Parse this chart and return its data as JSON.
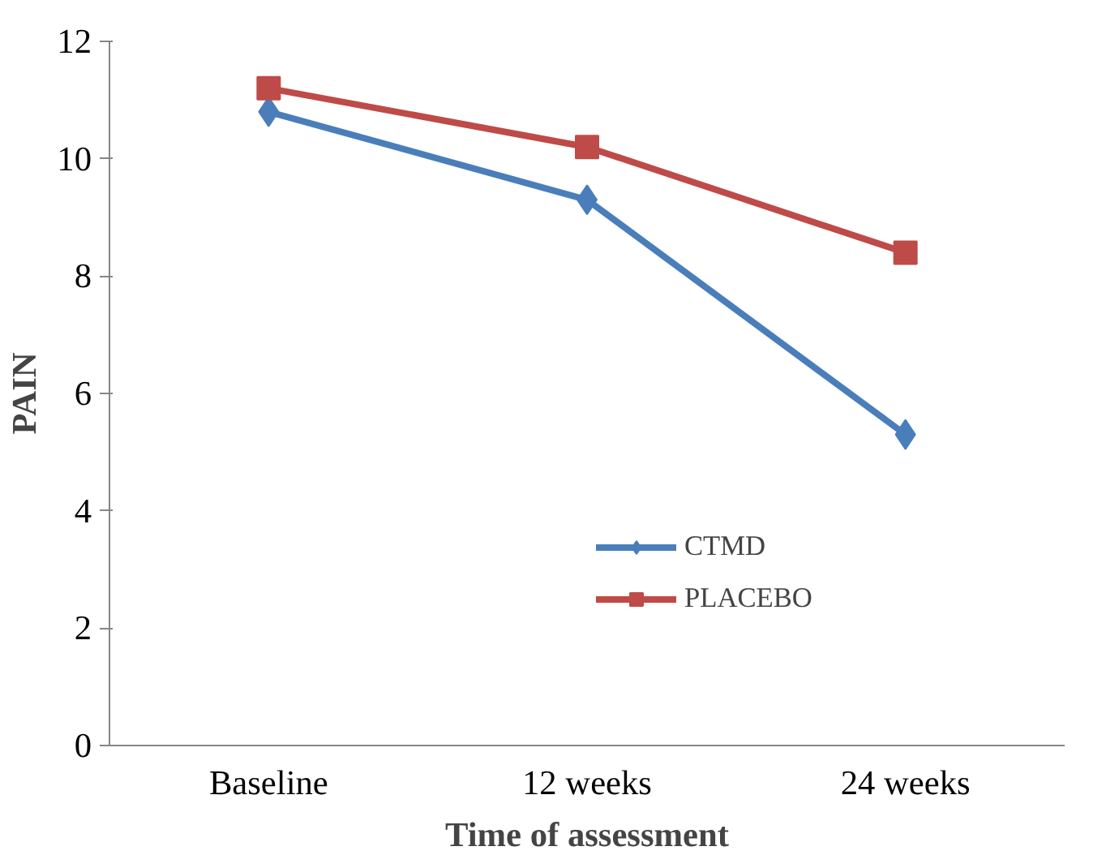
{
  "chart_data": {
    "type": "line",
    "xlabel": "Time of assessment",
    "ylabel": "PAIN",
    "categories": [
      "Baseline",
      "12 weeks",
      "24 weeks"
    ],
    "series": [
      {
        "name": "CTMD",
        "color": "#4a7ebb",
        "marker": "diamond",
        "values": [
          10.8,
          9.3,
          5.3
        ]
      },
      {
        "name": "PLACEBO",
        "color": "#be4b48",
        "marker": "square",
        "values": [
          11.2,
          10.2,
          8.4
        ]
      }
    ],
    "ylim": [
      0,
      12
    ],
    "yticks": [
      0,
      2,
      4,
      6,
      8,
      10,
      12
    ],
    "grid": false,
    "legend": "right"
  }
}
